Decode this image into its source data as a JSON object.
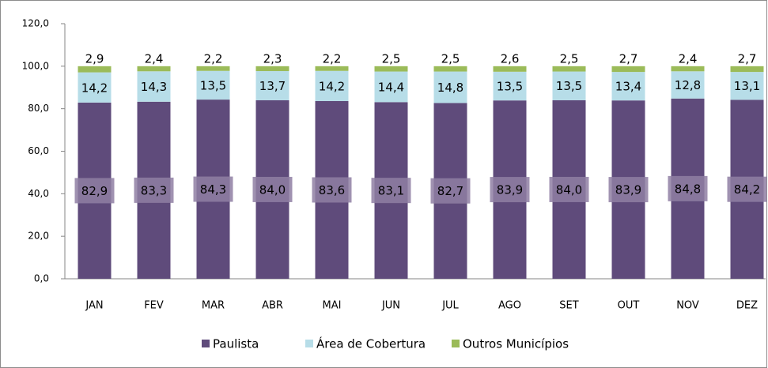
{
  "chart_data": {
    "type": "stacked-bar",
    "categories": [
      "JAN",
      "FEV",
      "MAR",
      "ABR",
      "MAI",
      "JUN",
      "JUL",
      "AGO",
      "SET",
      "OUT",
      "NOV",
      "DEZ"
    ],
    "series": [
      {
        "name": "Paulista",
        "color": "#5f4b7b",
        "values": [
          82.9,
          83.3,
          84.3,
          84.0,
          83.6,
          83.1,
          82.7,
          83.9,
          84.0,
          83.9,
          84.8,
          84.2
        ],
        "value_labels": [
          "82,9",
          "83,3",
          "84,3",
          "84,0",
          "83,6",
          "83,1",
          "82,7",
          "83,9",
          "84,0",
          "83,9",
          "84,8",
          "84,2"
        ]
      },
      {
        "name": "Área de Cobertura",
        "color": "#b7dde8",
        "values": [
          14.2,
          14.3,
          13.5,
          13.7,
          14.2,
          14.4,
          14.8,
          13.5,
          13.5,
          13.4,
          12.8,
          13.1
        ],
        "value_labels": [
          "14,2",
          "14,3",
          "13,5",
          "13,7",
          "14,2",
          "14,4",
          "14,8",
          "13,5",
          "13,5",
          "13,4",
          "12,8",
          "13,1"
        ]
      },
      {
        "name": "Outros Municípios",
        "color": "#9bbb59",
        "values": [
          2.9,
          2.4,
          2.2,
          2.3,
          2.2,
          2.5,
          2.5,
          2.6,
          2.5,
          2.7,
          2.4,
          2.7
        ],
        "value_labels": [
          "2,9",
          "2,4",
          "2,2",
          "2,3",
          "2,2",
          "2,5",
          "2,5",
          "2,6",
          "2,5",
          "2,7",
          "2,4",
          "2,7"
        ]
      }
    ],
    "ylim": [
      0,
      120
    ],
    "yticks": [
      {
        "value": 0,
        "label": "0,0"
      },
      {
        "value": 20,
        "label": "20,0"
      },
      {
        "value": 40,
        "label": "40,0"
      },
      {
        "value": 60,
        "label": "60,0"
      },
      {
        "value": 80,
        "label": "80,0"
      },
      {
        "value": 100,
        "label": "100,0"
      },
      {
        "value": 120,
        "label": "120,0"
      }
    ],
    "legend": "bottom"
  }
}
